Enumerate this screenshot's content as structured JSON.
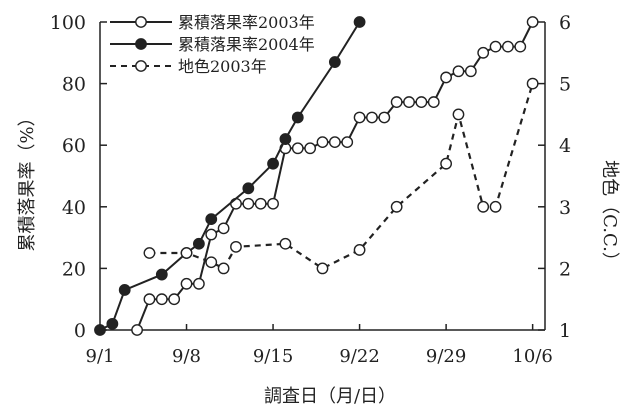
{
  "chart_data": {
    "type": "line",
    "title": "",
    "xlabel": "調査日（月/日）",
    "ylabel_left": "累積落果率（%）",
    "ylabel_right": "地色（C.C.）",
    "x_tick_labels": [
      "9/1",
      "9/8",
      "9/15",
      "9/22",
      "9/29",
      "10/6"
    ],
    "x_tick_days": [
      1,
      8,
      15,
      22,
      29,
      36
    ],
    "xlim_days": [
      1,
      37
    ],
    "ylim_left": [
      0,
      100
    ],
    "ylim_right": [
      1,
      6
    ],
    "y_left_ticks": [
      0,
      20,
      40,
      60,
      80,
      100
    ],
    "y_right_ticks": [
      1,
      2,
      3,
      4,
      5,
      6
    ],
    "legend_position": "top-left",
    "series": [
      {
        "name": "累積落果率2003年",
        "axis": "left",
        "marker": "open-circle",
        "line": "solid",
        "points": [
          [
            4,
            0
          ],
          [
            5,
            10
          ],
          [
            6,
            10
          ],
          [
            7,
            10
          ],
          [
            8,
            15
          ],
          [
            9,
            15
          ],
          [
            10,
            31
          ],
          [
            11,
            33
          ],
          [
            12,
            41
          ],
          [
            13,
            41
          ],
          [
            14,
            41
          ],
          [
            15,
            41
          ],
          [
            16,
            59
          ],
          [
            17,
            59
          ],
          [
            18,
            59
          ],
          [
            19,
            61
          ],
          [
            20,
            61
          ],
          [
            21,
            61
          ],
          [
            22,
            69
          ],
          [
            23,
            69
          ],
          [
            24,
            69
          ],
          [
            25,
            74
          ],
          [
            26,
            74
          ],
          [
            27,
            74
          ],
          [
            28,
            74
          ],
          [
            29,
            82
          ],
          [
            30,
            84
          ],
          [
            31,
            84
          ],
          [
            32,
            90
          ],
          [
            33,
            92
          ],
          [
            34,
            92
          ],
          [
            35,
            92
          ],
          [
            36,
            100
          ]
        ]
      },
      {
        "name": "累積落果率2004年",
        "axis": "left",
        "marker": "filled-circle",
        "line": "solid",
        "points": [
          [
            1,
            0
          ],
          [
            2,
            2
          ],
          [
            3,
            13
          ],
          [
            6,
            18
          ],
          [
            8,
            25
          ],
          [
            9,
            28
          ],
          [
            10,
            36
          ],
          [
            13,
            46
          ],
          [
            15,
            54
          ],
          [
            16,
            62
          ],
          [
            17,
            69
          ],
          [
            20,
            87
          ],
          [
            22,
            100
          ]
        ]
      },
      {
        "name": "地色2003年",
        "axis": "right",
        "marker": "open-circle",
        "line": "dashed",
        "points": [
          [
            5,
            2.25
          ],
          [
            8,
            2.25
          ],
          [
            10,
            2.1
          ],
          [
            11,
            2.0
          ],
          [
            12,
            2.35
          ],
          [
            16,
            2.4
          ],
          [
            19,
            2.0
          ],
          [
            22,
            2.3
          ],
          [
            25,
            3.0
          ],
          [
            29,
            3.7
          ],
          [
            30,
            4.5
          ],
          [
            32,
            3.0
          ],
          [
            33,
            3.0
          ],
          [
            36,
            5.0
          ]
        ]
      }
    ]
  }
}
